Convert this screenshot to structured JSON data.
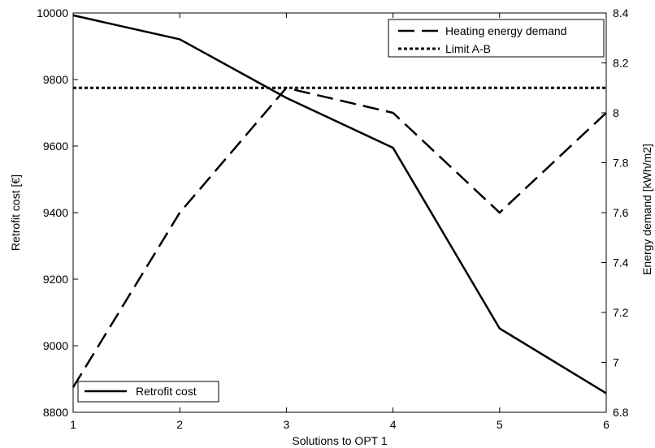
{
  "chart_data": {
    "type": "line",
    "x": [
      1,
      2,
      3,
      4,
      5,
      6
    ],
    "xlabel": "Solutions to OPT 1",
    "ylabel_left": "Retrofit cost [€]",
    "ylabel_right": "Energy demand [kWh/m2]",
    "xlim": [
      1,
      6
    ],
    "ylim_left": [
      8800,
      10000
    ],
    "ylim_right": [
      6.8,
      8.4
    ],
    "xticks": [
      "1",
      "2",
      "3",
      "4",
      "5",
      "6"
    ],
    "yticks_left": [
      "8800",
      "9000",
      "9200",
      "9400",
      "9600",
      "9800",
      "10000"
    ],
    "yticks_right": [
      "6.8",
      "7",
      "7.2",
      "7.4",
      "7.6",
      "7.8",
      "8",
      "8.2",
      "8.4"
    ],
    "series": [
      {
        "name": "Retrofit cost",
        "axis": "left",
        "style": "solid",
        "color": "#000000",
        "values": [
          9993,
          9921,
          9745,
          9595,
          9052,
          8857
        ]
      },
      {
        "name": "Heating energy demand",
        "axis": "right",
        "style": "dashed",
        "color": "#000000",
        "values": [
          6.9,
          7.6,
          8.1,
          8.0,
          7.6,
          8.0
        ]
      },
      {
        "name": "Limit A-B",
        "axis": "right",
        "style": "dotted",
        "color": "#000000",
        "values": [
          8.1,
          8.1,
          8.1,
          8.1,
          8.1,
          8.1
        ]
      }
    ],
    "legend_right": [
      "Heating energy demand",
      "Limit A-B"
    ],
    "legend_left": [
      "Retrofit cost"
    ],
    "legend_right_placement": "top-right",
    "legend_left_placement": "bottom-left",
    "grid": false
  }
}
